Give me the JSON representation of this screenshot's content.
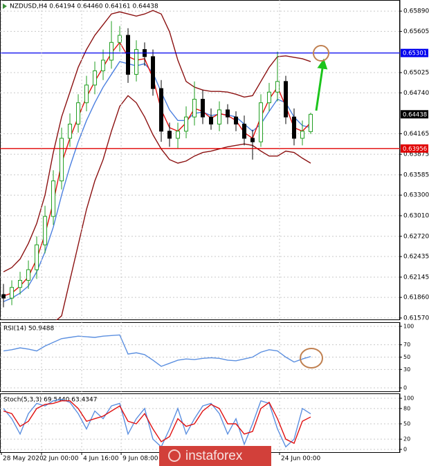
{
  "watermark": "instaforex",
  "chart_data": [
    {
      "type": "candlestick",
      "title": "NZDUSD,H4 0.64194 0.64460 0.64161 0.64438",
      "xlim": [
        -0.42,
        47.75
      ],
      "ylim": [
        0.6154,
        0.66047
      ],
      "yticks": [
        {
          "value": 0.6589,
          "label": "0.65890"
        },
        0.65605,
        {
          "value": 0.65025,
          "label": "0.65025"
        },
        {
          "value": 0.6474,
          "label": "0.64740"
        },
        0.64165,
        0.63875,
        0.63585,
        {
          "value": 0.633,
          "label": "0.63300"
        },
        {
          "value": 0.6301,
          "label": "0.63010"
        },
        {
          "value": 0.6272,
          "label": "0.62720"
        },
        0.62435,
        0.62145,
        {
          "value": 0.6186,
          "label": "0.61860"
        },
        {
          "value": 0.6157,
          "label": "0.61570"
        }
      ],
      "grid": true,
      "up_color": "#1f9e1f",
      "down_color": "#000000",
      "open": [
        0.619,
        0.6185,
        0.62,
        0.621,
        0.6225,
        0.626,
        0.63,
        0.635,
        0.641,
        0.643,
        0.646,
        0.6485,
        0.6505,
        0.652,
        0.6545,
        0.6555,
        0.65,
        0.6535,
        0.6525,
        0.648,
        0.642,
        0.641,
        0.642,
        0.644,
        0.6465,
        0.644,
        0.643,
        0.645,
        0.644,
        0.643,
        0.641,
        0.6405,
        0.646,
        0.6475,
        0.649,
        0.644,
        0.641,
        0.64194
      ],
      "high": [
        0.6205,
        0.621,
        0.6222,
        0.6238,
        0.6272,
        0.6315,
        0.6365,
        0.6425,
        0.6445,
        0.6472,
        0.6498,
        0.6518,
        0.6535,
        0.6575,
        0.6568,
        0.6565,
        0.6548,
        0.6545,
        0.6535,
        0.6492,
        0.6432,
        0.6432,
        0.6455,
        0.649,
        0.6478,
        0.6452,
        0.6462,
        0.6458,
        0.6448,
        0.6442,
        0.6422,
        0.6472,
        0.6488,
        0.6532,
        0.6498,
        0.6452,
        0.6435,
        0.6446
      ],
      "low": [
        0.6172,
        0.6175,
        0.619,
        0.6198,
        0.6212,
        0.6248,
        0.6288,
        0.6338,
        0.6398,
        0.6418,
        0.6448,
        0.6472,
        0.6492,
        0.6508,
        0.6532,
        0.6488,
        0.649,
        0.6512,
        0.647,
        0.6405,
        0.6398,
        0.6395,
        0.641,
        0.6428,
        0.643,
        0.6422,
        0.642,
        0.643,
        0.642,
        0.64,
        0.638,
        0.6398,
        0.6448,
        0.6462,
        0.643,
        0.64,
        0.64,
        0.64161
      ],
      "close": [
        0.6185,
        0.62,
        0.621,
        0.6225,
        0.626,
        0.63,
        0.635,
        0.641,
        0.643,
        0.646,
        0.6485,
        0.6505,
        0.652,
        0.6545,
        0.6555,
        0.65,
        0.6535,
        0.6525,
        0.648,
        0.642,
        0.641,
        0.642,
        0.644,
        0.6465,
        0.644,
        0.643,
        0.645,
        0.644,
        0.643,
        0.641,
        0.6405,
        0.646,
        0.6475,
        0.649,
        0.644,
        0.641,
        0.642,
        0.64438
      ],
      "series": [
        {
          "color": "#8b1010",
          "values": [
            0.6222,
            0.6228,
            0.624,
            0.6262,
            0.629,
            0.633,
            0.639,
            0.644,
            0.6475,
            0.651,
            0.6535,
            0.6555,
            0.657,
            0.6585,
            0.6588,
            0.6585,
            0.6582,
            0.6585,
            0.659,
            0.6585,
            0.656,
            0.652,
            0.649,
            0.6482,
            0.6478,
            0.6476,
            0.6476,
            0.6475,
            0.6472,
            0.6468,
            0.647,
            0.649,
            0.651,
            0.6525,
            0.6526,
            0.6524,
            0.6522,
            0.6518
          ]
        },
        {
          "color": "#8b1010",
          "values": [
            0.614,
            0.614,
            0.6142,
            0.6144,
            0.6146,
            0.6148,
            0.615,
            0.616,
            0.621,
            0.626,
            0.631,
            0.635,
            0.638,
            0.642,
            0.6455,
            0.647,
            0.646,
            0.644,
            0.6415,
            0.6395,
            0.638,
            0.6375,
            0.6378,
            0.6385,
            0.639,
            0.6392,
            0.6395,
            0.6398,
            0.64,
            0.6402,
            0.64,
            0.6392,
            0.6385,
            0.6385,
            0.6392,
            0.639,
            0.6382,
            0.6375
          ]
        },
        {
          "color": "#4a7fe0",
          "values": [
            0.618,
            0.6185,
            0.6192,
            0.6202,
            0.6222,
            0.625,
            0.6285,
            0.633,
            0.637,
            0.6405,
            0.6435,
            0.646,
            0.6482,
            0.65,
            0.6518,
            0.6515,
            0.6512,
            0.6515,
            0.6502,
            0.6475,
            0.645,
            0.6435,
            0.6435,
            0.6445,
            0.6447,
            0.6442,
            0.6444,
            0.6443,
            0.644,
            0.643,
            0.642,
            0.643,
            0.6448,
            0.6465,
            0.646,
            0.644,
            0.6428,
            0.6425
          ]
        },
        {
          "color": "#e01010",
          "values": [
            0.6188,
            0.6192,
            0.6202,
            0.6215,
            0.624,
            0.6275,
            0.632,
            0.6375,
            0.641,
            0.644,
            0.6468,
            0.649,
            0.651,
            0.653,
            0.6545,
            0.6525,
            0.652,
            0.6522,
            0.6495,
            0.645,
            0.6425,
            0.642,
            0.6432,
            0.6452,
            0.6448,
            0.6438,
            0.6445,
            0.6442,
            0.6435,
            0.6418,
            0.641,
            0.644,
            0.6465,
            0.6482,
            0.6455,
            0.6425,
            0.642,
            0.6432
          ]
        }
      ],
      "levels": [
        {
          "value": 0.65301,
          "color": "#0000ee"
        },
        {
          "value": 0.63956,
          "color": "#e00000"
        }
      ]
    },
    {
      "type": "line",
      "title": "RSI(14) 50.9488",
      "xlim": [
        -0.42,
        47.75
      ],
      "ylim": [
        -6.7,
        106.7
      ],
      "yticks": [
        100,
        70,
        50,
        30,
        0
      ],
      "grid": true,
      "series": [
        {
          "color": "#5b8fe0",
          "values": [
            60,
            62,
            65,
            63,
            60,
            68,
            74,
            80,
            82,
            84,
            83,
            82,
            84,
            85,
            86,
            55,
            57,
            54,
            45,
            35,
            40,
            45,
            47,
            46,
            48,
            49,
            48,
            45,
            44,
            47,
            50,
            58,
            62,
            60,
            50,
            42,
            47,
            50.9488
          ]
        }
      ]
    },
    {
      "type": "line",
      "title": "Stoch(5,3,3) 69.5440 63.4347",
      "xlim": [
        -0.42,
        47.75
      ],
      "ylim": [
        -6.8,
        109.5
      ],
      "yticks": [
        100,
        80,
        50,
        20,
        0
      ],
      "grid": true,
      "xticks": [
        {
          "value": -0.25,
          "label": "28 May 2020"
        },
        {
          "value": 4.58,
          "label": "2 Jun 00:00"
        },
        {
          "value": 9.42,
          "label": "4 Jun 16:00"
        },
        {
          "value": 14.17,
          "label": "9 Jun 08:00"
        },
        {
          "value": 33.25,
          "label": "24 Jun 00:00"
        }
      ],
      "series": [
        {
          "color": "#5b8fe0",
          "values": [
            80,
            60,
            30,
            70,
            90,
            85,
            95,
            98,
            92,
            70,
            40,
            75,
            60,
            85,
            90,
            30,
            60,
            80,
            20,
            5,
            40,
            80,
            30,
            60,
            85,
            90,
            70,
            30,
            60,
            10,
            50,
            95,
            90,
            40,
            5,
            20,
            80,
            69.544
          ]
        },
        {
          "color": "#e01010",
          "values": [
            75,
            70,
            45,
            55,
            80,
            88,
            90,
            95,
            95,
            80,
            55,
            60,
            65,
            75,
            85,
            55,
            50,
            70,
            40,
            15,
            25,
            60,
            45,
            50,
            75,
            88,
            80,
            50,
            50,
            30,
            35,
            80,
            92,
            60,
            20,
            12,
            55,
            63.4347
          ]
        }
      ]
    }
  ]
}
